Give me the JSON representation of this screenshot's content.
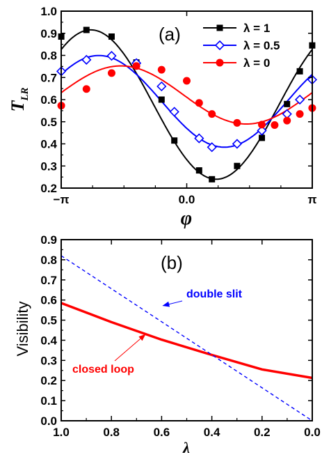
{
  "chart_data": [
    {
      "type": "line",
      "panel_label": "(a)",
      "xlabel": "φ",
      "ylabel_main": "T",
      "ylabel_sub": "LR",
      "xlim": [
        -3.14159,
        3.14159
      ],
      "ylim": [
        0.2,
        1.0
      ],
      "xticks": [
        {
          "value": -3.14159,
          "label": "−π"
        },
        {
          "value": 0,
          "label": "0.0"
        },
        {
          "value": 3.14159,
          "label": "π"
        }
      ],
      "yticks": [
        "0.2",
        "0.3",
        "0.4",
        "0.5",
        "0.6",
        "0.7",
        "0.8",
        "0.9",
        "1.0"
      ],
      "legend_position": "top-right",
      "series": [
        {
          "name": "λ = 1",
          "color": "#000000",
          "marker": "filled-square",
          "line": {
            "base": 0.5777,
            "amp": 0.3377,
            "phase": -2.4
          },
          "markers": [
            {
              "x": -3.14,
              "y": 0.885
            },
            {
              "x": -2.51,
              "y": 0.915
            },
            {
              "x": -1.88,
              "y": 0.885
            },
            {
              "x": -1.26,
              "y": 0.768
            },
            {
              "x": -0.63,
              "y": 0.6
            },
            {
              "x": -0.31,
              "y": 0.415
            },
            {
              "x": 0.31,
              "y": 0.28
            },
            {
              "x": 0.63,
              "y": 0.24
            },
            {
              "x": 1.26,
              "y": 0.3
            },
            {
              "x": 1.88,
              "y": 0.427
            },
            {
              "x": 2.51,
              "y": 0.58
            },
            {
              "x": 2.83,
              "y": 0.728
            },
            {
              "x": 3.14,
              "y": 0.845
            }
          ]
        },
        {
          "name": "λ = 0.5",
          "color": "#0000ff",
          "marker": "open-diamond",
          "line": {
            "base": 0.5922,
            "amp": 0.2073,
            "phase": -2.2
          },
          "markers": [
            {
              "x": -3.14,
              "y": 0.728
            },
            {
              "x": -2.51,
              "y": 0.78
            },
            {
              "x": -1.88,
              "y": 0.798
            },
            {
              "x": -1.26,
              "y": 0.765
            },
            {
              "x": -0.63,
              "y": 0.66
            },
            {
              "x": -0.31,
              "y": 0.545
            },
            {
              "x": 0.31,
              "y": 0.425
            },
            {
              "x": 0.63,
              "y": 0.385
            },
            {
              "x": 1.26,
              "y": 0.4
            },
            {
              "x": 1.88,
              "y": 0.46
            },
            {
              "x": 2.51,
              "y": 0.535
            },
            {
              "x": 2.83,
              "y": 0.6
            },
            {
              "x": 3.14,
              "y": 0.69
            }
          ]
        },
        {
          "name": "λ = 0",
          "color": "#ff0000",
          "marker": "filled-circle",
          "line": {
            "base": 0.6211,
            "amp": 0.1314,
            "phase": -1.65
          },
          "markers": [
            {
              "x": -3.14,
              "y": 0.573
            },
            {
              "x": -2.51,
              "y": 0.648
            },
            {
              "x": -1.88,
              "y": 0.72
            },
            {
              "x": -1.26,
              "y": 0.752
            },
            {
              "x": -0.63,
              "y": 0.735
            },
            {
              "x": 0,
              "y": 0.685
            },
            {
              "x": 0.31,
              "y": 0.585
            },
            {
              "x": 0.63,
              "y": 0.535
            },
            {
              "x": 1.26,
              "y": 0.495
            },
            {
              "x": 1.88,
              "y": 0.487
            },
            {
              "x": 2.2,
              "y": 0.485
            },
            {
              "x": 2.51,
              "y": 0.505
            },
            {
              "x": 2.83,
              "y": 0.535
            },
            {
              "x": 3.14,
              "y": 0.562
            }
          ]
        }
      ]
    },
    {
      "type": "line",
      "panel_label": "(b)",
      "xlabel": "λ",
      "ylabel": "Visibility",
      "xlim": [
        1.0,
        0.0
      ],
      "ylim": [
        0.0,
        0.9
      ],
      "xticks": [
        "1.0",
        "0.8",
        "0.6",
        "0.4",
        "0.2",
        "0.0"
      ],
      "yticks": [
        "0.0",
        "0.1",
        "0.2",
        "0.3",
        "0.4",
        "0.5",
        "0.6",
        "0.7",
        "0.8",
        "0.9"
      ],
      "series": [
        {
          "name": "closed loop",
          "color": "#ff0000",
          "style": "solid",
          "x": [
            1.0,
            0.8,
            0.6,
            0.4,
            0.2,
            0.0
          ],
          "y": [
            0.585,
            0.49,
            0.403,
            0.327,
            0.255,
            0.213
          ]
        },
        {
          "name": "double slit",
          "color": "#0000ff",
          "style": "dashed",
          "x": [
            1.0,
            0.0
          ],
          "y": [
            0.82,
            0.0
          ]
        }
      ],
      "annotations": [
        {
          "text": "double slit",
          "color": "#0000ff",
          "arrow_to": {
            "x": 0.6,
            "y": 0.565
          }
        },
        {
          "text": "closed loop",
          "color": "#ff0000",
          "arrow_to": {
            "x": 0.66,
            "y": 0.435
          }
        }
      ]
    }
  ]
}
